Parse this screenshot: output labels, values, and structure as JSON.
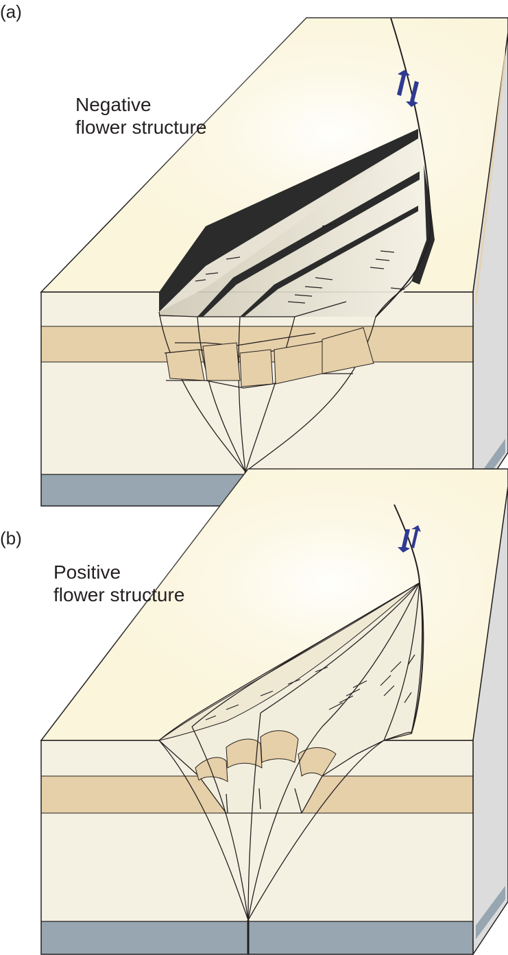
{
  "panels": [
    {
      "letter": "(a)",
      "title_line1": "Negative",
      "title_line2": "flower structure"
    },
    {
      "letter": "(b)",
      "title_line1": "Positive",
      "title_line2": "flower structure"
    }
  ],
  "colors": {
    "surface": "#fbf5dc",
    "surface_glow": "#fffbe8",
    "pale_layer": "#f5f1e2",
    "tan_layer": "#e6d0a9",
    "basement": "#97a6b0",
    "side_face": "#d8d8d8",
    "fault_line": "#231f20",
    "dark_band": "#2b2b2b",
    "arrow": "#2f3a93"
  }
}
